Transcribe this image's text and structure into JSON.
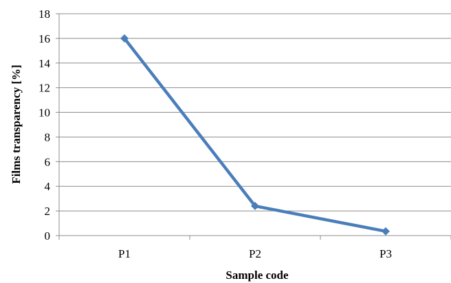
{
  "chart_data": {
    "type": "line",
    "categories": [
      "P1",
      "P2",
      "P3"
    ],
    "series": [
      {
        "values": [
          16,
          2.4,
          0.35
        ]
      }
    ],
    "xlabel": "Sample code",
    "ylabel": "Films transparency [%]",
    "ylim": [
      0,
      18
    ],
    "yticks": [
      0,
      2,
      4,
      6,
      8,
      10,
      12,
      14,
      16,
      18
    ],
    "grid": true,
    "marker": "diamond",
    "colors": {
      "series": "#4a7ebb",
      "grid": "#8c8c8c",
      "axis": "#8c8c8c"
    }
  }
}
